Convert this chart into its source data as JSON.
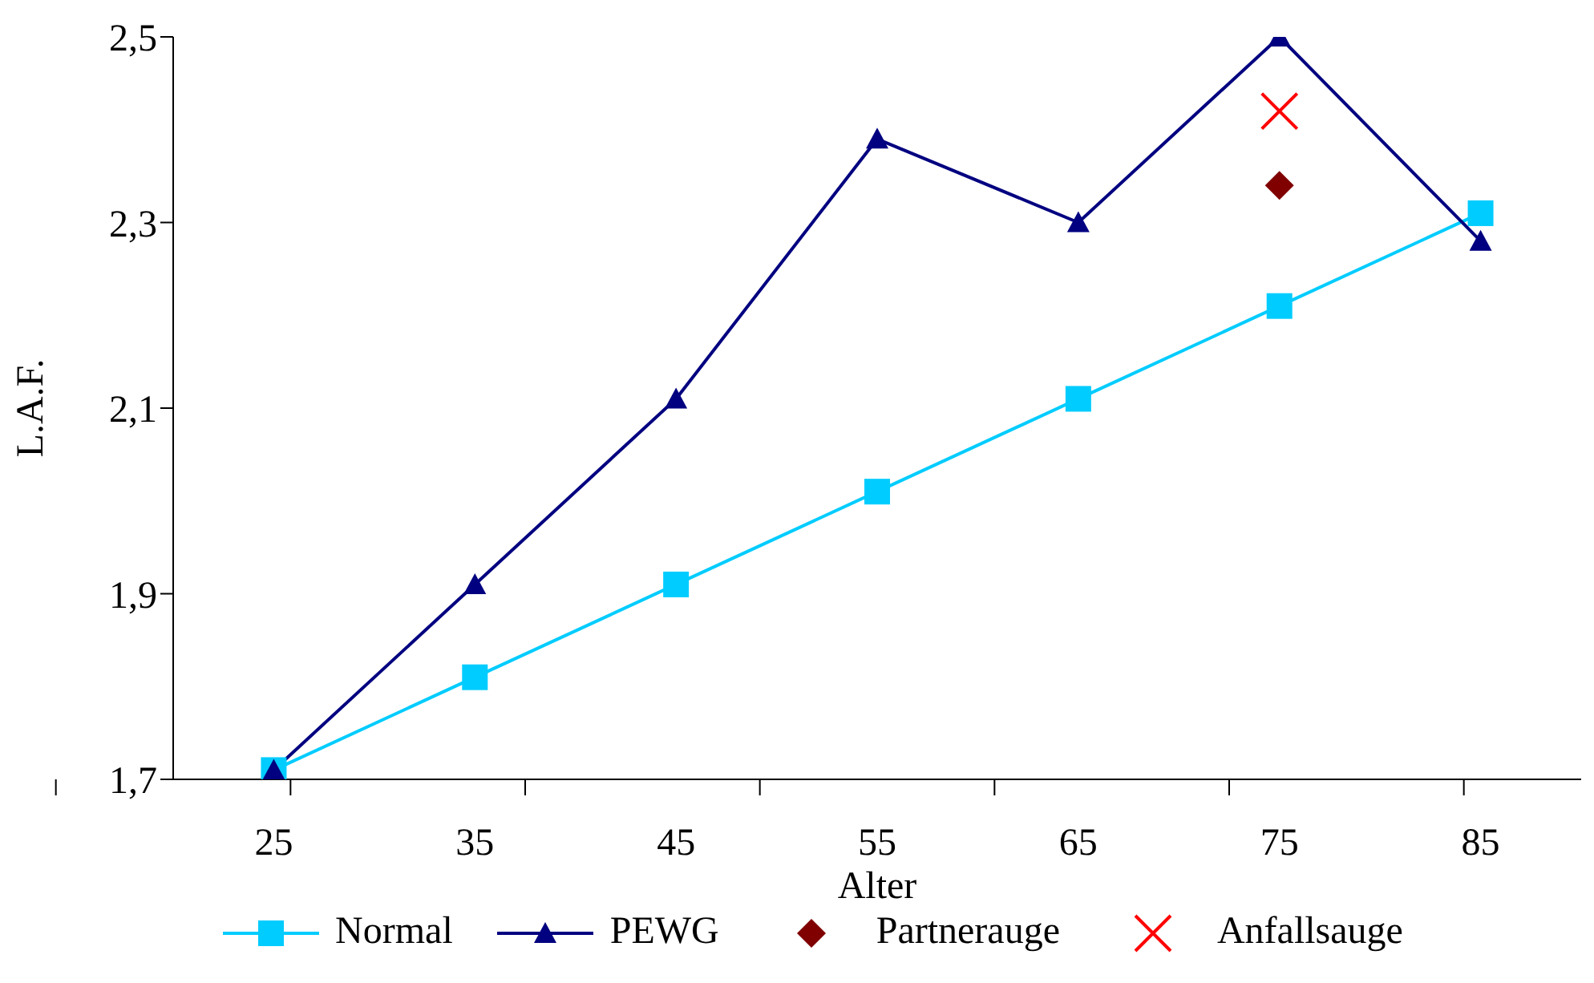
{
  "chart_data": {
    "type": "line",
    "xlabel": "Alter",
    "ylabel": "L.A.F.",
    "categories": [
      "25",
      "35",
      "45",
      "55",
      "65",
      "75",
      "85"
    ],
    "ylim": [
      1.7,
      2.5
    ],
    "yticks": [
      {
        "value": 1.7,
        "label": "1,7"
      },
      {
        "value": 1.9,
        "label": "1,9"
      },
      {
        "value": 2.1,
        "label": "2,1"
      },
      {
        "value": 2.3,
        "label": "2,3"
      },
      {
        "value": 2.5,
        "label": "2,5"
      }
    ],
    "grid": false,
    "legend": "bottom",
    "series": [
      {
        "name": "Normal",
        "color": "#00ccff",
        "marker": "square",
        "values": [
          1.71,
          1.81,
          1.91,
          2.01,
          2.11,
          2.21,
          2.31
        ]
      },
      {
        "name": "PEWG",
        "color": "#000080",
        "marker": "triangle",
        "values": [
          1.71,
          1.91,
          2.11,
          2.39,
          2.3,
          2.5,
          2.28
        ]
      },
      {
        "name": "Partnerauge",
        "type": "scatter",
        "color": "#800000",
        "marker": "diamond",
        "values": [
          null,
          null,
          null,
          null,
          null,
          2.34,
          null
        ]
      },
      {
        "name": "Anfallsauge",
        "type": "scatter",
        "color": "#ff0000",
        "marker": "cross",
        "values": [
          null,
          null,
          null,
          null,
          null,
          2.42,
          null
        ]
      }
    ]
  }
}
